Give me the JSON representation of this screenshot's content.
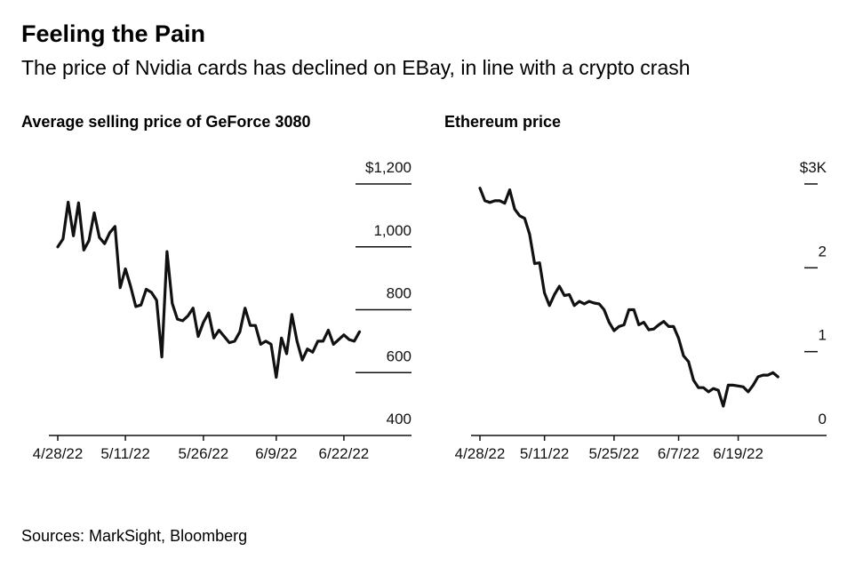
{
  "header": {
    "title": "Feeling the Pain",
    "subtitle": "The price of Nvidia cards has declined on EBay, in line with a crypto crash"
  },
  "footer": {
    "source": "Sources: MarkSight, Bloomberg"
  },
  "colors": {
    "line": "#111111",
    "grid": "#111111",
    "background": "#ffffff"
  },
  "chart_data": [
    {
      "type": "line",
      "title": "Average selling price of GeForce 3080",
      "xlabel": "",
      "ylabel": "",
      "ylim": [
        400,
        1200
      ],
      "y_ticks": [
        {
          "value": 1200,
          "label": "$1,200"
        },
        {
          "value": 1000,
          "label": "1,000"
        },
        {
          "value": 800,
          "label": "800"
        },
        {
          "value": 600,
          "label": "600"
        },
        {
          "value": 400,
          "label": "400"
        }
      ],
      "x_ticks": [
        "4/28/22",
        "5/11/22",
        "5/26/22",
        "6/9/22",
        "6/22/22"
      ],
      "x_tick_index": [
        0,
        13,
        28,
        42,
        55
      ],
      "x_range": [
        0,
        68
      ],
      "grid": "horizontal-at-right",
      "series": [
        {
          "values": [
            1000,
            1025,
            1142,
            1035,
            1140,
            990,
            1020,
            1108,
            1030,
            1010,
            1045,
            1065,
            870,
            930,
            875,
            810,
            815,
            865,
            855,
            830,
            650,
            985,
            820,
            770,
            765,
            780,
            805,
            715,
            760,
            790,
            710,
            735,
            715,
            695,
            700,
            730,
            805,
            750,
            750,
            690,
            700,
            690,
            585,
            710,
            660,
            785,
            700,
            640,
            675,
            665,
            700,
            700,
            735,
            690,
            705,
            720,
            705,
            700,
            730
          ]
        }
      ]
    },
    {
      "type": "line",
      "title": "Ethereum price",
      "xlabel": "",
      "ylabel": "",
      "ylim": [
        0,
        3
      ],
      "y_ticks": [
        {
          "value": 3,
          "label": "$3K"
        },
        {
          "value": 2,
          "label": "2"
        },
        {
          "value": 1,
          "label": "1"
        },
        {
          "value": 0,
          "label": "0"
        }
      ],
      "x_ticks": [
        "4/28/22",
        "5/11/22",
        "5/25/22",
        "6/7/22",
        "6/19/22"
      ],
      "x_tick_index": [
        0,
        13,
        27,
        40,
        52
      ],
      "x_range": [
        0,
        68
      ],
      "grid": "horizontal-at-right",
      "series": [
        {
          "values": [
            2.95,
            2.8,
            2.78,
            2.8,
            2.8,
            2.77,
            2.93,
            2.7,
            2.62,
            2.59,
            2.4,
            2.05,
            2.06,
            1.7,
            1.55,
            1.68,
            1.78,
            1.67,
            1.68,
            1.55,
            1.6,
            1.57,
            1.6,
            1.58,
            1.57,
            1.5,
            1.35,
            1.25,
            1.3,
            1.32,
            1.5,
            1.5,
            1.32,
            1.35,
            1.26,
            1.27,
            1.32,
            1.36,
            1.3,
            1.3,
            1.16,
            0.95,
            0.88,
            0.66,
            0.57,
            0.57,
            0.52,
            0.56,
            0.54,
            0.35,
            0.6,
            0.6,
            0.59,
            0.58,
            0.52,
            0.6,
            0.7,
            0.72,
            0.72,
            0.75,
            0.7
          ]
        }
      ]
    }
  ]
}
